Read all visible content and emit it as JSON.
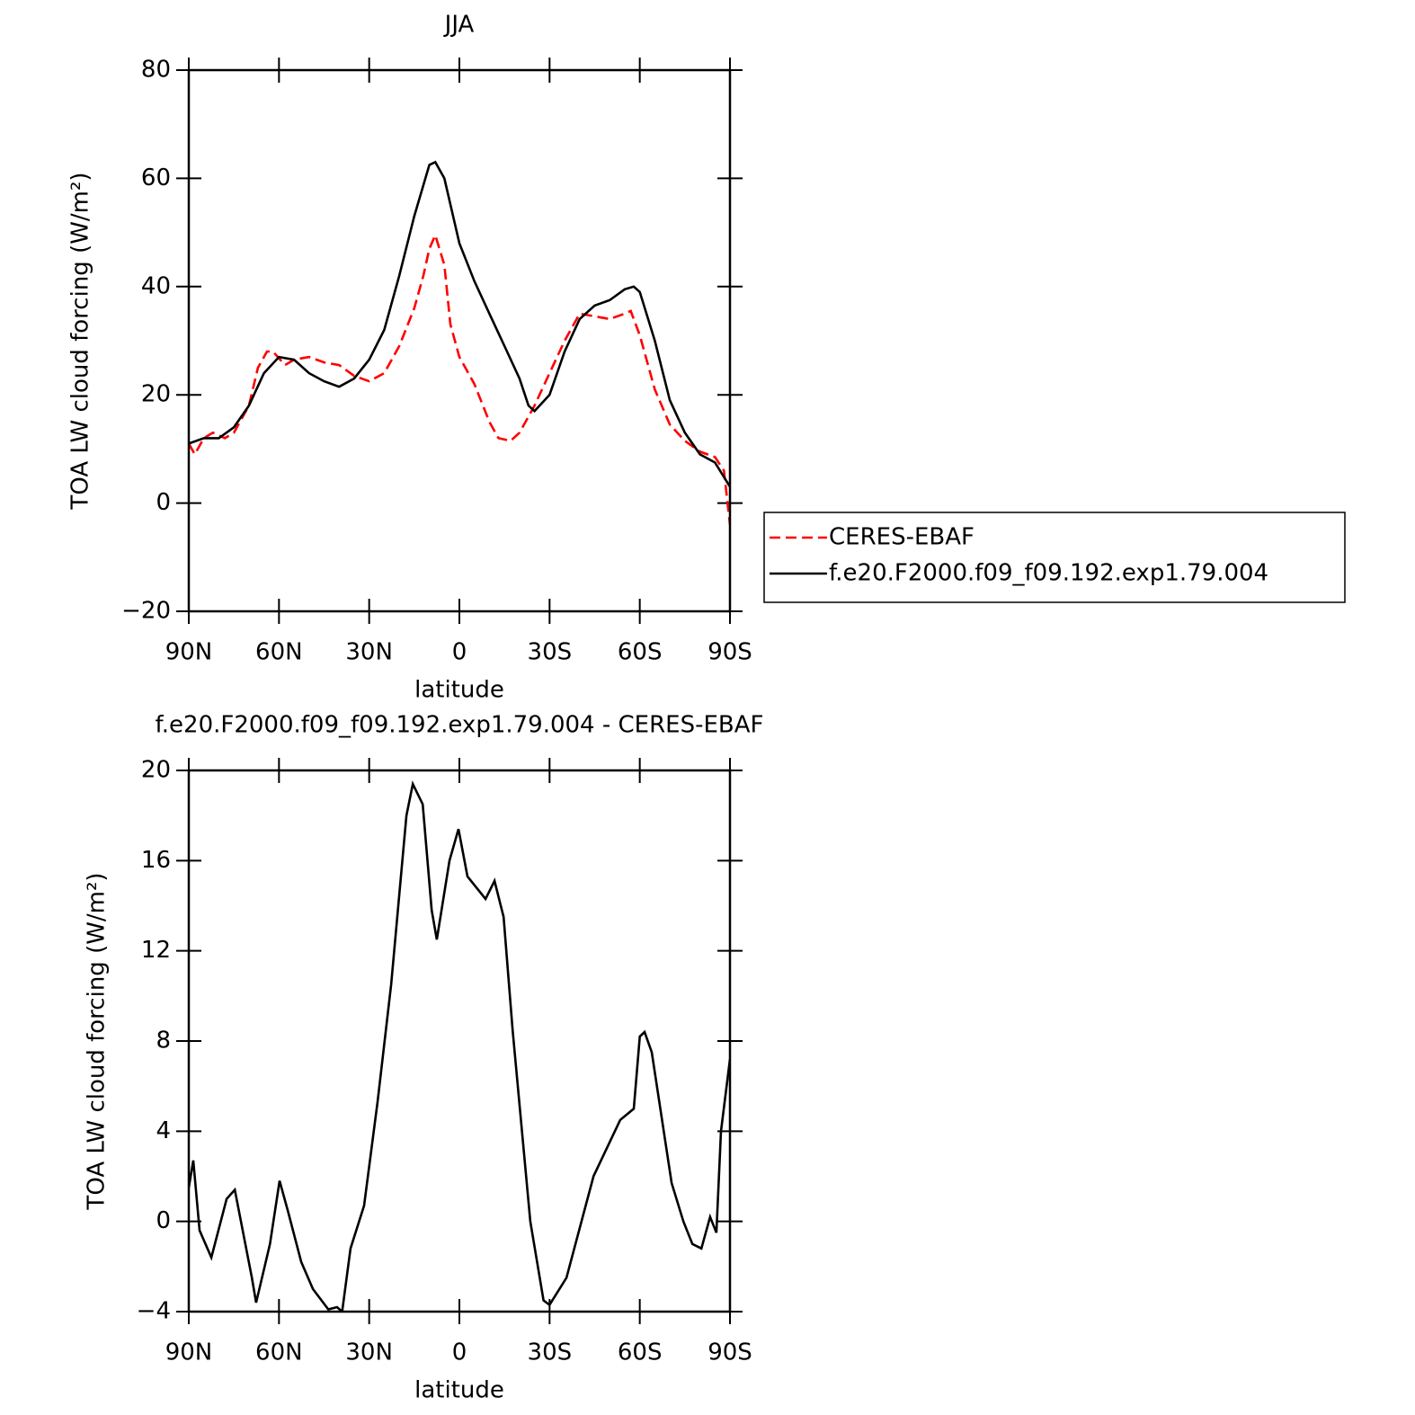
{
  "chart_data": [
    {
      "type": "line",
      "title": "JJA",
      "xlabel": "latitude",
      "ylabel": "TOA LW cloud forcing (W/m²)",
      "xlim": [
        90,
        -90
      ],
      "ylim": [
        -20,
        80
      ],
      "xticks": [
        {
          "value": 90,
          "label": "90N"
        },
        {
          "value": 60,
          "label": "60N"
        },
        {
          "value": 30,
          "label": "30N"
        },
        0,
        {
          "value": -30,
          "label": "30S"
        },
        {
          "value": -60,
          "label": "60S"
        },
        {
          "value": -90,
          "label": "90S"
        }
      ],
      "yticks": [
        {
          "value": -20,
          "label": "−20"
        },
        0,
        20,
        40,
        60,
        80
      ],
      "series": [
        {
          "name": "CERES-EBAF",
          "color": "#ff0000",
          "dash": true,
          "x": [
            90,
            88,
            85,
            82,
            78,
            75,
            70,
            67,
            64,
            62,
            58,
            55,
            50,
            45,
            40,
            35,
            30,
            25,
            20,
            15,
            12,
            10,
            8,
            5,
            3,
            0,
            -5,
            -10,
            -13,
            -17,
            -20,
            -25,
            -30,
            -35,
            -40,
            -45,
            -50,
            -55,
            -57,
            -60,
            -65,
            -70,
            -75,
            -80,
            -85,
            -88,
            -90
          ],
          "values": [
            11,
            9,
            12,
            13,
            12,
            13,
            18,
            25,
            28,
            28,
            25.5,
            26.5,
            27,
            26,
            25.5,
            23.5,
            22.5,
            24,
            29,
            36,
            42,
            47,
            49.5,
            44,
            33,
            27,
            22,
            15,
            12,
            11.5,
            13,
            18,
            24,
            30,
            35,
            34.5,
            34,
            35,
            35.5,
            31,
            21,
            14.5,
            11.5,
            9.5,
            8.5,
            6,
            -4
          ]
        },
        {
          "name": "f.e20.F2000.f09_f09.192.exp1.79.004",
          "color": "#000000",
          "dash": false,
          "x": [
            90,
            85,
            80,
            75,
            70,
            65,
            60,
            55,
            50,
            45,
            40,
            35,
            30,
            25,
            20,
            15,
            10,
            8,
            5,
            0,
            -5,
            -10,
            -15,
            -20,
            -23,
            -25,
            -30,
            -35,
            -40,
            -45,
            -50,
            -55,
            -58,
            -60,
            -65,
            -70,
            -75,
            -80,
            -85,
            -90
          ],
          "values": [
            11,
            12,
            12,
            14,
            18,
            24,
            27,
            26.5,
            24,
            22.5,
            21.5,
            23,
            26.5,
            32,
            42,
            53,
            62.5,
            63,
            60,
            48,
            41,
            35,
            29,
            23,
            18,
            17,
            20,
            28,
            34,
            36.5,
            37.5,
            39.5,
            40,
            39,
            30,
            19,
            13,
            9,
            7.5,
            3
          ]
        }
      ]
    },
    {
      "type": "line",
      "title": "f.e20.F2000.f09_f09.192.exp1.79.004 - CERES-EBAF",
      "xlabel": "latitude",
      "ylabel": "TOA LW cloud forcing (W/m²)",
      "xlim": [
        90,
        -90
      ],
      "ylim": [
        -4,
        20
      ],
      "xticks": [
        {
          "value": 90,
          "label": "90N"
        },
        {
          "value": 60,
          "label": "60N"
        },
        {
          "value": 30,
          "label": "30N"
        },
        0,
        {
          "value": -30,
          "label": "30S"
        },
        {
          "value": -60,
          "label": "60S"
        },
        {
          "value": -90,
          "label": "90S"
        }
      ],
      "yticks": [
        {
          "value": -4,
          "label": "−4"
        },
        0,
        4,
        8,
        12,
        16,
        20
      ],
      "series": [
        {
          "color": "#000000",
          "dash": false,
          "x": [
            90,
            88.5,
            86.4,
            82.5,
            77.4,
            74.7,
            69,
            67.6,
            63,
            59.8,
            57.1,
            52.6,
            48.7,
            43.6,
            40.7,
            39,
            36.2,
            31.7,
            27.2,
            22.7,
            17.6,
            15.5,
            12.2,
            9.2,
            7.5,
            3.3,
            0.3,
            -2.7,
            -8.7,
            -11.7,
            -14.7,
            -17.7,
            -23.6,
            -28,
            -30,
            -35.6,
            -44.6,
            -53.5,
            -58,
            -60,
            -61.6,
            -64,
            -70.6,
            -74.5,
            -77.5,
            -80.5,
            -83.4,
            -85.5,
            -87,
            -90
          ],
          "values": [
            1.5,
            2.7,
            -0.4,
            -1.6,
            1,
            1.4,
            -2.5,
            -3.6,
            -1,
            1.8,
            0.5,
            -1.8,
            -3,
            -3.9,
            -3.8,
            -4,
            -1.2,
            0.7,
            5.3,
            10.5,
            18,
            19.4,
            18.5,
            13.8,
            12.5,
            16,
            17.4,
            15.3,
            14.3,
            15.1,
            13.5,
            8.5,
            0,
            -3.5,
            -3.7,
            -2.5,
            2,
            4.5,
            5,
            8.2,
            8.4,
            7.5,
            1.7,
            0,
            -1,
            -1.2,
            0.2,
            -0.5,
            4,
            7.2
          ]
        }
      ]
    }
  ]
}
